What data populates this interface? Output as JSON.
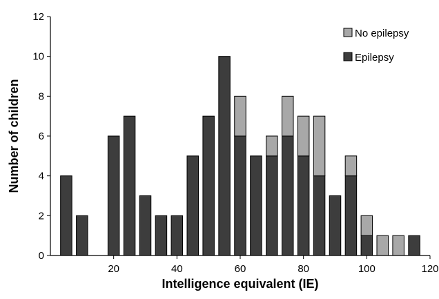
{
  "chart_data": {
    "type": "bar",
    "stacked": true,
    "xlabel": "Intelligence equivalent (IE)",
    "ylabel": "Number of children",
    "xlim": [
      0,
      120
    ],
    "ylim": [
      0,
      12
    ],
    "xticks": [
      20,
      40,
      60,
      80,
      100,
      120
    ],
    "yticks": [
      0,
      2,
      4,
      6,
      8,
      10,
      12
    ],
    "grid": false,
    "legend_position": "top-right",
    "x": [
      5,
      10,
      20,
      25,
      30,
      35,
      40,
      45,
      50,
      55,
      60,
      65,
      70,
      75,
      80,
      85,
      90,
      95,
      100,
      105,
      110,
      115
    ],
    "series": [
      {
        "name": "Epilepsy",
        "color": "#3d3d3d",
        "values": [
          4,
          2,
          6,
          7,
          3,
          2,
          2,
          5,
          7,
          10,
          6,
          5,
          5,
          6,
          5,
          4,
          3,
          4,
          1,
          0,
          0,
          1
        ]
      },
      {
        "name": "No epilepsy",
        "color": "#a8a8a8",
        "values": [
          0,
          0,
          0,
          0,
          0,
          0,
          0,
          0,
          0,
          0,
          2,
          0,
          1,
          2,
          2,
          3,
          0,
          1,
          1,
          1,
          1,
          0
        ]
      }
    ],
    "legend": [
      "No epilepsy",
      "Epilepsy"
    ]
  }
}
